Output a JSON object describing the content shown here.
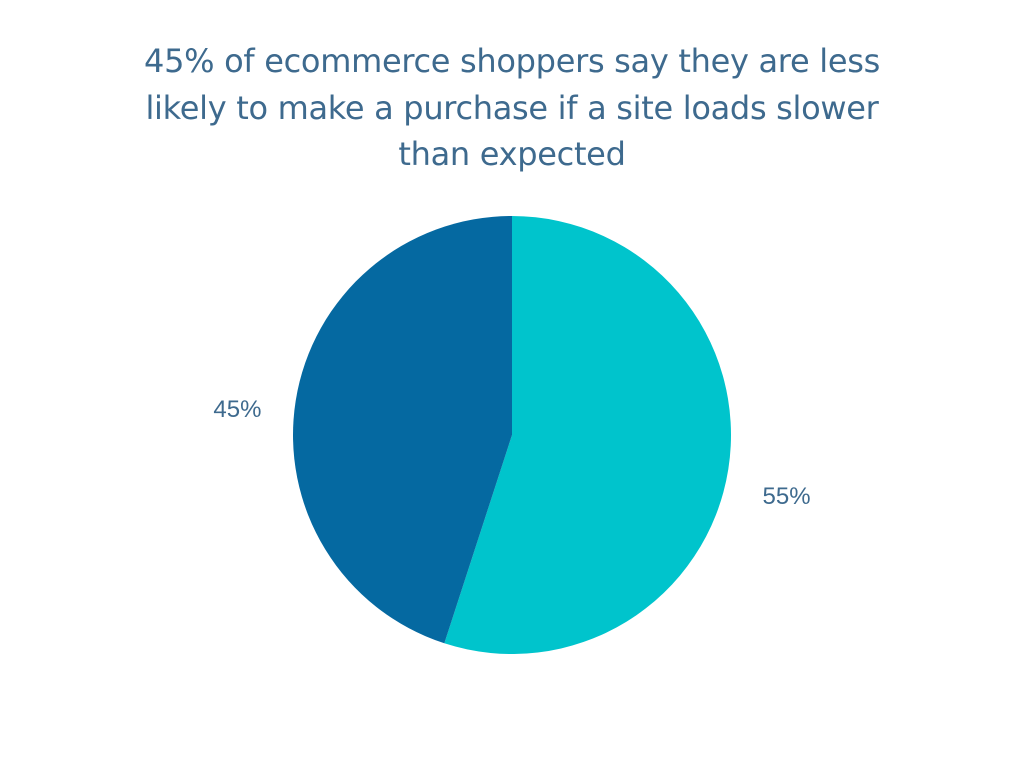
{
  "chart_data": {
    "type": "pie",
    "title": "45% of ecommerce shoppers say they are less likely to make a purchase if a site loads slower than expected",
    "values": [
      55,
      45
    ],
    "value_labels": [
      "55%",
      "45%"
    ],
    "colors": [
      "#00c4cc",
      "#0569a1"
    ]
  }
}
